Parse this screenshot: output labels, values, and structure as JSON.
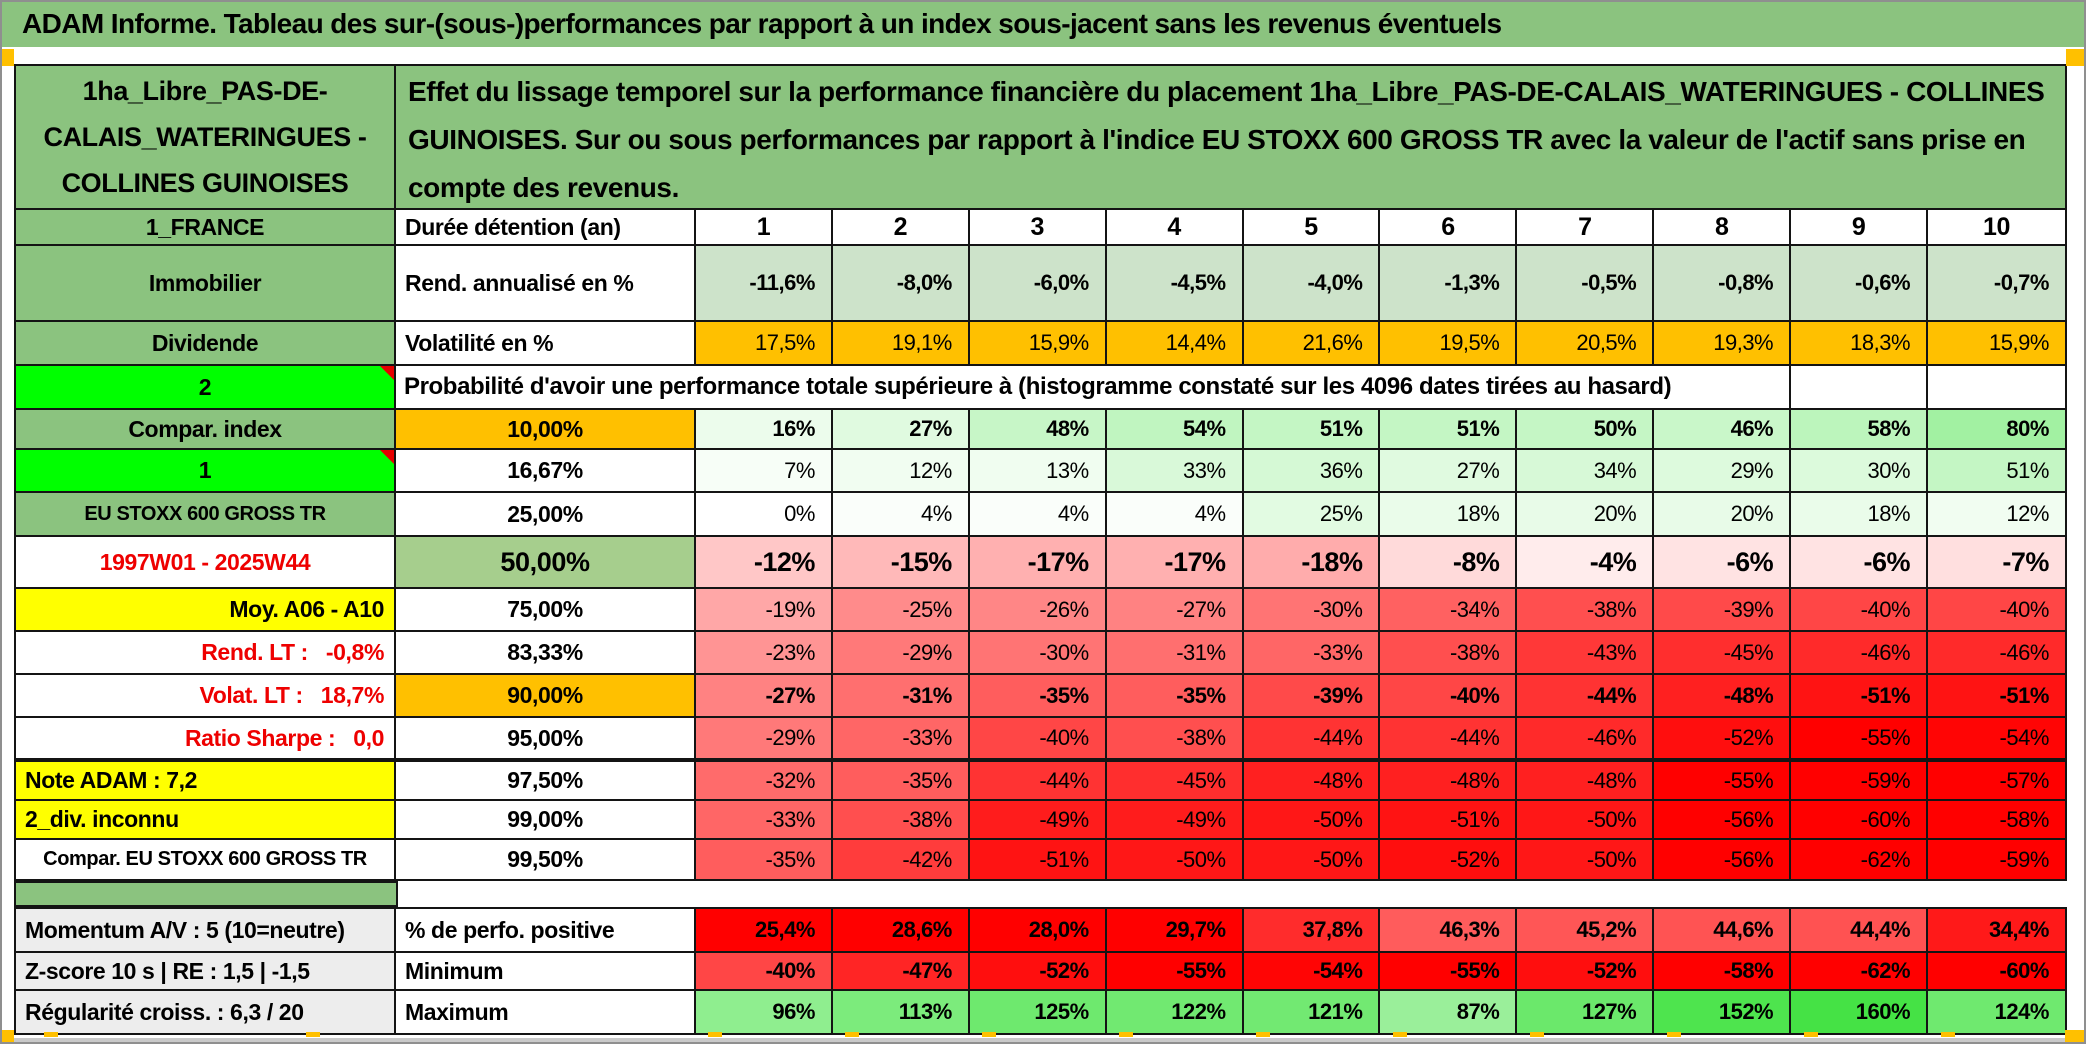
{
  "window": {
    "title": "ADAM Informe. Tableau des sur-(sous-)performances par rapport à un index sous-jacent sans les revenus éventuels"
  },
  "header": {
    "asset_name": "1ha_Libre_PAS-DE-CALAIS_WATERINGUES - COLLINES GUINOISES",
    "description": "Effet du lissage temporel sur la performance financière du placement 1ha_Libre_PAS-DE-CALAIS_WATERINGUES - COLLINES GUINOISES. Sur ou sous performances par rapport à l'indice EU STOXX 600 GROSS TR avec la valeur de l'actif sans prise en compte des revenus."
  },
  "colors": {
    "title_green": "#8BC37F",
    "label_green": "#8BC37F",
    "bright_green": "#00FF00",
    "orange": "#FFC000",
    "yellow": "#FFFF00",
    "light_green_row": "#CDE3CA",
    "mid_green": "#A6CE8D",
    "footer_gray": "#EDEDED",
    "red_text": "#EE0000",
    "green_scale": "#22DD22",
    "red_scale": "#FF0000"
  },
  "table": {
    "main_rows": [
      {
        "id": "duration",
        "a": "1_FRANCE",
        "aBg": "label_green",
        "b": "Durée détention (an)",
        "bAlign": "left",
        "bBold": true,
        "cells": [
          "1",
          "2",
          "3",
          "4",
          "5",
          "6",
          "7",
          "8",
          "9",
          "10"
        ],
        "cellBg": "#FFFFFF",
        "center": true,
        "bold": true
      },
      {
        "id": "rend",
        "a": "Immobilier",
        "aBg": "label_green",
        "b": "Rend. annualisé en %",
        "bAlign": "left",
        "bBold": true,
        "cells": [
          "-11,6%",
          "-8,0%",
          "-6,0%",
          "-4,5%",
          "-4,0%",
          "-1,3%",
          "-0,5%",
          "-0,8%",
          "-0,6%",
          "-0,7%"
        ],
        "cellBg": "light_green_row",
        "bold": true
      },
      {
        "id": "volat",
        "a": "Dividende",
        "aBg": "label_green",
        "b": "Volatilité en %",
        "bAlign": "left",
        "bBold": true,
        "cells": [
          "17,5%",
          "19,1%",
          "15,9%",
          "14,4%",
          "21,6%",
          "19,5%",
          "20,5%",
          "19,3%",
          "18,3%",
          "15,9%"
        ],
        "cellBg": "orange"
      },
      {
        "id": "proba",
        "a": "2",
        "aBg": "bright_green",
        "marker": true,
        "merged": "Probabilité d'avoir une performance totale supérieure à (histogramme constaté sur les 4096 dates tirées au hasard)"
      },
      {
        "id": "p10",
        "a": "Compar. index",
        "aBg": "label_green",
        "b": "10,00%",
        "bBg": "orange",
        "bBold": true,
        "cells": [
          "16%",
          "27%",
          "48%",
          "54%",
          "51%",
          "51%",
          "50%",
          "46%",
          "58%",
          "80%"
        ],
        "scale": "green",
        "bold": true
      },
      {
        "id": "p16",
        "a": "1",
        "aBg": "bright_green",
        "marker": true,
        "b": "16,67%",
        "cells": [
          "7%",
          "12%",
          "13%",
          "33%",
          "36%",
          "27%",
          "34%",
          "29%",
          "30%",
          "51%"
        ],
        "scale": "green"
      },
      {
        "id": "p25",
        "a": "EU STOXX 600 GROSS TR",
        "aBg": "label_green",
        "aSmall": true,
        "b": "25,00%",
        "cells": [
          "0%",
          "4%",
          "4%",
          "4%",
          "25%",
          "18%",
          "20%",
          "20%",
          "18%",
          "12%"
        ],
        "scale": "green"
      },
      {
        "id": "p50",
        "a": "1997W01 - 2025W44",
        "aFg": "red_text",
        "b": "50,00%",
        "bBg": "mid_green",
        "bBold": true,
        "cells": [
          "-12%",
          "-15%",
          "-17%",
          "-17%",
          "-18%",
          "-8%",
          "-4%",
          "-6%",
          "-6%",
          "-7%"
        ],
        "scale": "red",
        "bold": true,
        "big": true
      },
      {
        "id": "p75",
        "a": "Moy. A06 - A10",
        "aBg": "yellow",
        "aAlign": "right",
        "b": "75,00%",
        "cells": [
          "-19%",
          "-25%",
          "-26%",
          "-27%",
          "-30%",
          "-34%",
          "-38%",
          "-39%",
          "-40%",
          "-40%"
        ],
        "scale": "red"
      },
      {
        "id": "p83",
        "a": "Rend. LT :   -0,8%",
        "aFg": "red_text",
        "aAlign": "right",
        "b": "83,33%",
        "cells": [
          "-23%",
          "-29%",
          "-30%",
          "-31%",
          "-33%",
          "-38%",
          "-43%",
          "-45%",
          "-46%",
          "-46%"
        ],
        "scale": "red"
      },
      {
        "id": "p90",
        "a": "Volat. LT :   18,7%",
        "aFg": "red_text",
        "aAlign": "right",
        "b": "90,00%",
        "bBg": "orange",
        "bBold": true,
        "cells": [
          "-27%",
          "-31%",
          "-35%",
          "-35%",
          "-39%",
          "-40%",
          "-44%",
          "-48%",
          "-51%",
          "-51%"
        ],
        "scale": "red",
        "bold": true
      },
      {
        "id": "p95",
        "a": "Ratio Sharpe :   0,0",
        "aFg": "red_text",
        "aAlign": "right",
        "b": "95,00%",
        "cells": [
          "-29%",
          "-33%",
          "-40%",
          "-38%",
          "-44%",
          "-44%",
          "-46%",
          "-52%",
          "-55%",
          "-54%"
        ],
        "scale": "red",
        "thick": true
      },
      {
        "id": "p975",
        "a": "Note ADAM : 7,2",
        "aBg": "yellow",
        "aAlign": "left",
        "b": "97,50%",
        "cells": [
          "-32%",
          "-35%",
          "-44%",
          "-45%",
          "-48%",
          "-48%",
          "-48%",
          "-55%",
          "-59%",
          "-57%"
        ],
        "scale": "red"
      },
      {
        "id": "p99",
        "a": "2_div. inconnu",
        "aBg": "yellow",
        "aAlign": "left",
        "b": "99,00%",
        "cells": [
          "-33%",
          "-38%",
          "-49%",
          "-49%",
          "-50%",
          "-51%",
          "-50%",
          "-56%",
          "-60%",
          "-58%"
        ],
        "scale": "red"
      },
      {
        "id": "p995",
        "a": "Compar. EU STOXX 600 GROSS TR",
        "aSmall": true,
        "b": "99,50%",
        "cells": [
          "-35%",
          "-42%",
          "-51%",
          "-50%",
          "-50%",
          "-52%",
          "-50%",
          "-56%",
          "-62%",
          "-59%"
        ],
        "scale": "red"
      }
    ],
    "footer_rows": [
      {
        "id": "perf",
        "a": "Momentum A/V : 5 (10=neutre)",
        "aBg": "footer_gray",
        "aAlign": "left",
        "b": "% de perfo. positive",
        "bAlign": "left",
        "bBold": true,
        "cells": [
          "25,4%",
          "28,6%",
          "28,0%",
          "29,7%",
          "37,8%",
          "46,3%",
          "45,2%",
          "44,6%",
          "44,4%",
          "34,4%"
        ],
        "scale": "redpos",
        "bold": true
      },
      {
        "id": "min",
        "a": "Z-score 10 s | RE : 1,5 | -1,5",
        "aBg": "footer_gray",
        "aAlign": "left",
        "b": "Minimum",
        "bAlign": "left",
        "bBold": true,
        "cells": [
          "-40%",
          "-47%",
          "-52%",
          "-55%",
          "-54%",
          "-55%",
          "-52%",
          "-58%",
          "-62%",
          "-60%"
        ],
        "scale": "red",
        "bold": true
      },
      {
        "id": "max",
        "a": "Régularité croiss. : 6,3 / 20",
        "aBg": "footer_gray",
        "aAlign": "left",
        "b": "Maximum",
        "bAlign": "left",
        "bBold": true,
        "cells": [
          "96%",
          "113%",
          "125%",
          "122%",
          "121%",
          "87%",
          "127%",
          "152%",
          "160%",
          "124%"
        ],
        "scale": "green",
        "bold": true
      }
    ]
  }
}
